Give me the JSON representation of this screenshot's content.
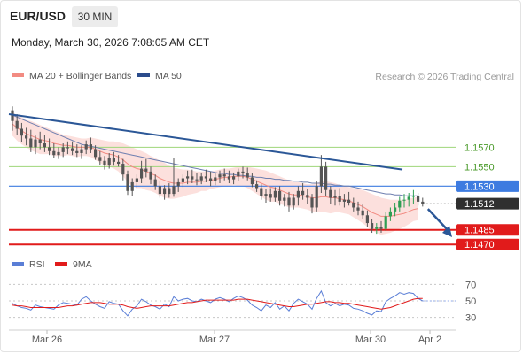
{
  "header": {
    "symbol": "EUR/USD",
    "timeframe": "30 MIN",
    "datetime": "Monday, March 30, 2026 7:08:05 AM CET"
  },
  "legend": {
    "ma20_label": "MA 20 + Bollinger Bands",
    "ma50_label": "MA 50",
    "rsi_label": "RSI",
    "rsi9_label": "9MA"
  },
  "credit": "Research © 2026 Trading Central",
  "colors": {
    "ma20": "#f28b82",
    "ma50": "#2b4c8c",
    "band_fill": "#fbd5d2",
    "candle": "#555555",
    "candle_up": "#2e9e53",
    "trendline": "#2b5797",
    "resistance_green": "#9ed67a",
    "pivot_blue": "#3d7be0",
    "support_red": "#e11b1b",
    "current_price_bg": "#2f2f2f",
    "rsi": "#5a7ed6",
    "rsi9": "#e11b1b"
  },
  "chart_data": [
    {
      "type": "candlestick",
      "x_ticks": [
        "Mar 26",
        "Mar 27",
        "Mar 30",
        "Apr 2"
      ],
      "y_range": [
        1.1462,
        1.1635
      ],
      "levels": [
        {
          "value": 1.157,
          "label": "1.1570",
          "kind": "resistance"
        },
        {
          "value": 1.155,
          "label": "1.1550",
          "kind": "resistance"
        },
        {
          "value": 1.153,
          "label": "1.1530",
          "kind": "pivot"
        },
        {
          "value": 1.1512,
          "label": "1.1512",
          "kind": "current"
        },
        {
          "value": 1.1485,
          "label": "1.1485",
          "kind": "support"
        },
        {
          "value": 1.147,
          "label": "1.1470",
          "kind": "support"
        }
      ],
      "candles": [
        [
          1.1608,
          1.1612,
          1.1587,
          1.1597
        ],
        [
          1.1597,
          1.1604,
          1.1583,
          1.1589
        ],
        [
          1.1589,
          1.1595,
          1.1575,
          1.1582
        ],
        [
          1.1582,
          1.159,
          1.1572,
          1.1579
        ],
        [
          1.1579,
          1.1588,
          1.1565,
          1.157
        ],
        [
          1.157,
          1.1582,
          1.1563,
          1.1578
        ],
        [
          1.1578,
          1.1586,
          1.1568,
          1.1574
        ],
        [
          1.1574,
          1.1583,
          1.1565,
          1.157
        ],
        [
          1.157,
          1.1579,
          1.1562,
          1.1566
        ],
        [
          1.1566,
          1.1574,
          1.1559,
          1.1562
        ],
        [
          1.1562,
          1.157,
          1.1558,
          1.1565
        ],
        [
          1.1565,
          1.1574,
          1.156,
          1.157
        ],
        [
          1.157,
          1.1576,
          1.1563,
          1.1569
        ],
        [
          1.1569,
          1.1576,
          1.1562,
          1.1566
        ],
        [
          1.1566,
          1.1573,
          1.156,
          1.1564
        ],
        [
          1.1564,
          1.1572,
          1.1558,
          1.1568
        ],
        [
          1.1568,
          1.1577,
          1.1563,
          1.1573
        ],
        [
          1.1573,
          1.158,
          1.1564,
          1.1568
        ],
        [
          1.1568,
          1.1572,
          1.1557,
          1.156
        ],
        [
          1.156,
          1.1566,
          1.1552,
          1.1556
        ],
        [
          1.1556,
          1.1561,
          1.1547,
          1.1552
        ],
        [
          1.1552,
          1.1564,
          1.1548,
          1.1559
        ],
        [
          1.1559,
          1.1565,
          1.1551,
          1.1555
        ],
        [
          1.1555,
          1.1562,
          1.155,
          1.1553
        ],
        [
          1.1553,
          1.1558,
          1.1536,
          1.1542
        ],
        [
          1.1542,
          1.1546,
          1.1521,
          1.1525
        ],
        [
          1.1525,
          1.1538,
          1.152,
          1.1534
        ],
        [
          1.1534,
          1.1542,
          1.1528,
          1.1538
        ],
        [
          1.1538,
          1.1556,
          1.1533,
          1.1548
        ],
        [
          1.1548,
          1.1558,
          1.1539,
          1.1545
        ],
        [
          1.1545,
          1.155,
          1.1532,
          1.1537
        ],
        [
          1.1537,
          1.1542,
          1.1526,
          1.153
        ],
        [
          1.153,
          1.1535,
          1.1518,
          1.1522
        ],
        [
          1.1522,
          1.1531,
          1.1516,
          1.1528
        ],
        [
          1.1528,
          1.1533,
          1.1518,
          1.1522
        ],
        [
          1.1522,
          1.1559,
          1.1519,
          1.153
        ],
        [
          1.153,
          1.1538,
          1.1524,
          1.1534
        ],
        [
          1.1534,
          1.1542,
          1.1529,
          1.1538
        ],
        [
          1.1538,
          1.1546,
          1.1532,
          1.154
        ],
        [
          1.154,
          1.1547,
          1.1533,
          1.1537
        ],
        [
          1.1537,
          1.1544,
          1.1531,
          1.1536
        ],
        [
          1.1536,
          1.1544,
          1.1532,
          1.154
        ],
        [
          1.154,
          1.1547,
          1.1534,
          1.1538
        ],
        [
          1.1538,
          1.1545,
          1.153,
          1.1535
        ],
        [
          1.1535,
          1.1543,
          1.1531,
          1.1539
        ],
        [
          1.1539,
          1.1546,
          1.1533,
          1.1542
        ],
        [
          1.1542,
          1.1548,
          1.1536,
          1.154
        ],
        [
          1.154,
          1.1546,
          1.1533,
          1.1537
        ],
        [
          1.1537,
          1.1544,
          1.1532,
          1.154
        ],
        [
          1.154,
          1.1548,
          1.1535,
          1.1545
        ],
        [
          1.1545,
          1.155,
          1.1538,
          1.1543
        ],
        [
          1.1543,
          1.1549,
          1.1536,
          1.1539
        ],
        [
          1.1539,
          1.1543,
          1.1529,
          1.1532
        ],
        [
          1.1532,
          1.1536,
          1.1524,
          1.1528
        ],
        [
          1.1528,
          1.1532,
          1.1516,
          1.152
        ],
        [
          1.152,
          1.1527,
          1.1513,
          1.1522
        ],
        [
          1.1522,
          1.1528,
          1.1514,
          1.1518
        ],
        [
          1.1518,
          1.1529,
          1.1514,
          1.1525
        ],
        [
          1.1525,
          1.153,
          1.151,
          1.1515
        ],
        [
          1.1515,
          1.1522,
          1.1509,
          1.1518
        ],
        [
          1.1518,
          1.1524,
          1.1504,
          1.151
        ],
        [
          1.151,
          1.1522,
          1.1506,
          1.1518
        ],
        [
          1.1518,
          1.153,
          1.151,
          1.1525
        ],
        [
          1.1525,
          1.1533,
          1.1516,
          1.1521
        ],
        [
          1.1521,
          1.1527,
          1.1512,
          1.1518
        ],
        [
          1.1518,
          1.1522,
          1.1502,
          1.1508
        ],
        [
          1.1508,
          1.1535,
          1.1504,
          1.153
        ],
        [
          1.153,
          1.1562,
          1.1523,
          1.155
        ],
        [
          1.155,
          1.1555,
          1.152,
          1.1526
        ],
        [
          1.1526,
          1.153,
          1.1512,
          1.1518
        ],
        [
          1.1518,
          1.1526,
          1.151,
          1.152
        ],
        [
          1.152,
          1.1528,
          1.151,
          1.1514
        ],
        [
          1.1514,
          1.1522,
          1.1508,
          1.1516
        ],
        [
          1.1516,
          1.1524,
          1.151,
          1.1513
        ],
        [
          1.1513,
          1.1518,
          1.1504,
          1.1508
        ],
        [
          1.1508,
          1.1514,
          1.15,
          1.1505
        ],
        [
          1.1505,
          1.1512,
          1.1496,
          1.15
        ],
        [
          1.15,
          1.1505,
          1.1488,
          1.1492
        ],
        [
          1.1492,
          1.1496,
          1.1482,
          1.1486
        ],
        [
          1.1486,
          1.1492,
          1.1481,
          1.1488
        ],
        [
          1.1488,
          1.1494,
          1.1482,
          1.1486
        ],
        [
          1.1486,
          1.1503,
          1.1484,
          1.1499
        ],
        [
          1.1499,
          1.1508,
          1.1494,
          1.1504
        ],
        [
          1.1504,
          1.1513,
          1.1499,
          1.1508
        ],
        [
          1.1508,
          1.1519,
          1.1504,
          1.1515
        ],
        [
          1.1515,
          1.1522,
          1.1508,
          1.1516
        ],
        [
          1.1516,
          1.1523,
          1.1509,
          1.1519
        ],
        [
          1.1519,
          1.1526,
          1.1512,
          1.152
        ],
        [
          1.152,
          1.1523,
          1.151,
          1.1514
        ],
        [
          1.1514,
          1.1518,
          1.1509,
          1.1512
        ]
      ],
      "ma20": [
        1.1594,
        1.159,
        1.1587,
        1.1584,
        1.1582,
        1.158,
        1.1578,
        1.1577,
        1.1576,
        1.1574,
        1.1573,
        1.1572,
        1.1572,
        1.1571,
        1.157,
        1.157,
        1.157,
        1.157,
        1.1568,
        1.1566,
        1.1564,
        1.1563,
        1.1562,
        1.156,
        1.1557,
        1.1553,
        1.155,
        1.1548,
        1.1547,
        1.1545,
        1.1543,
        1.1541,
        1.1538,
        1.1536,
        1.1534,
        1.1533,
        1.1533,
        1.1533,
        1.1534,
        1.1534,
        1.1534,
        1.1535,
        1.1535,
        1.1536,
        1.1537,
        1.1538,
        1.1539,
        1.1539,
        1.154,
        1.154,
        1.154,
        1.1539,
        1.1537,
        1.1535,
        1.1533,
        1.1531,
        1.1529,
        1.1528,
        1.1526,
        1.1524,
        1.1522,
        1.1521,
        1.1521,
        1.152,
        1.1519,
        1.1518,
        1.1518,
        1.1519,
        1.1519,
        1.1518,
        1.1518,
        1.1517,
        1.1516,
        1.1515,
        1.1513,
        1.1511,
        1.1509,
        1.1506,
        1.1503,
        1.1501,
        1.1499,
        1.1499,
        1.1499,
        1.15,
        1.1501,
        1.1502,
        1.1504,
        1.1506,
        1.1507
      ],
      "band_width": [
        0.0012,
        0.0013,
        0.0014,
        0.0014,
        0.0015,
        0.0015,
        0.0015,
        0.0014,
        0.0013,
        0.0013,
        0.0012,
        0.0011,
        0.001,
        0.001,
        0.001,
        0.0009,
        0.0009,
        0.001,
        0.0011,
        0.0012,
        0.0013,
        0.0013,
        0.0014,
        0.0015,
        0.0017,
        0.0019,
        0.002,
        0.002,
        0.0019,
        0.0019,
        0.0018,
        0.0018,
        0.0018,
        0.0018,
        0.0017,
        0.0016,
        0.0015,
        0.0014,
        0.0013,
        0.0012,
        0.0011,
        0.001,
        0.001,
        0.0009,
        0.0009,
        0.0009,
        0.0009,
        0.0009,
        0.0009,
        0.001,
        0.001,
        0.0011,
        0.0012,
        0.0013,
        0.0014,
        0.0015,
        0.0015,
        0.0014,
        0.0014,
        0.0014,
        0.0014,
        0.0013,
        0.0013,
        0.0013,
        0.0013,
        0.0014,
        0.0015,
        0.0016,
        0.0016,
        0.0016,
        0.0015,
        0.0014,
        0.0014,
        0.0014,
        0.0015,
        0.0016,
        0.0017,
        0.0018,
        0.0019,
        0.0019,
        0.0019,
        0.0018,
        0.0017,
        0.0016,
        0.0015,
        0.0014,
        0.0013,
        0.0012,
        0.0012
      ],
      "ma50": [
        1.1603,
        1.1601,
        1.1599,
        1.1597,
        1.1595,
        1.1593,
        1.1591,
        1.1589,
        1.1587,
        1.1585,
        1.1583,
        1.1581,
        1.1579,
        1.1577,
        1.1575,
        1.1573,
        1.1572,
        1.1571,
        1.157,
        1.1569,
        1.1568,
        1.1567,
        1.1566,
        1.1565,
        1.1564,
        1.1563,
        1.1562,
        1.1561,
        1.156,
        1.1559,
        1.1558,
        1.1557,
        1.1556,
        1.1555,
        1.1554,
        1.1553,
        1.1552,
        1.1551,
        1.155,
        1.1549,
        1.1548,
        1.1547,
        1.1546,
        1.1545,
        1.1544,
        1.1543,
        1.1543,
        1.1542,
        1.1542,
        1.1541,
        1.1541,
        1.154,
        1.154,
        1.1539,
        1.1539,
        1.1538,
        1.1538,
        1.1537,
        1.1537,
        1.1536,
        1.1536,
        1.1535,
        1.1535,
        1.1534,
        1.1534,
        1.1533,
        1.1533,
        1.1533,
        1.1532,
        1.1532,
        1.1531,
        1.1531,
        1.153,
        1.153,
        1.1529,
        1.1528,
        1.1527,
        1.1526,
        1.1525,
        1.1524,
        1.1523,
        1.1522,
        1.1522,
        1.1521,
        1.1521,
        1.152,
        1.152,
        1.152,
        1.152
      ],
      "trendline": [
        [
          1.1604,
          1.1547
        ]
      ]
    },
    {
      "type": "line",
      "y_ticks": [
        "70",
        "50",
        "30"
      ],
      "y_range": [
        20,
        80
      ],
      "series": [
        {
          "name": "RSI",
          "values": [
            47,
            44,
            42,
            41,
            39,
            45,
            43,
            42,
            41,
            40,
            45,
            48,
            47,
            46,
            45,
            52,
            55,
            50,
            46,
            43,
            41,
            49,
            47,
            46,
            38,
            32,
            40,
            44,
            52,
            49,
            45,
            43,
            40,
            46,
            43,
            55,
            50,
            52,
            53,
            50,
            49,
            52,
            50,
            48,
            52,
            54,
            52,
            49,
            53,
            56,
            54,
            51,
            45,
            42,
            38,
            45,
            42,
            48,
            40,
            44,
            38,
            47,
            52,
            49,
            46,
            40,
            53,
            62,
            48,
            44,
            47,
            44,
            46,
            45,
            41,
            40,
            38,
            35,
            33,
            38,
            37,
            49,
            53,
            56,
            60,
            58,
            60,
            59,
            53,
            50
          ]
        },
        {
          "name": "9MA",
          "values": [
            45,
            44,
            44,
            43,
            42,
            42,
            42,
            42,
            42,
            42,
            42,
            43,
            44,
            44,
            45,
            46,
            47,
            48,
            48,
            48,
            47,
            46,
            46,
            46,
            45,
            43,
            42,
            41,
            42,
            43,
            44,
            44,
            44,
            44,
            44,
            45,
            46,
            47,
            48,
            48,
            49,
            50,
            51,
            51,
            51,
            51,
            51,
            51,
            51,
            52,
            52,
            52,
            51,
            50,
            49,
            48,
            47,
            46,
            45,
            44,
            43,
            43,
            44,
            45,
            46,
            46,
            47,
            48,
            49,
            49,
            48,
            48,
            47,
            47,
            46,
            45,
            44,
            43,
            42,
            41,
            40,
            41,
            42,
            44,
            46,
            48,
            50,
            52,
            53,
            53
          ]
        }
      ]
    }
  ]
}
